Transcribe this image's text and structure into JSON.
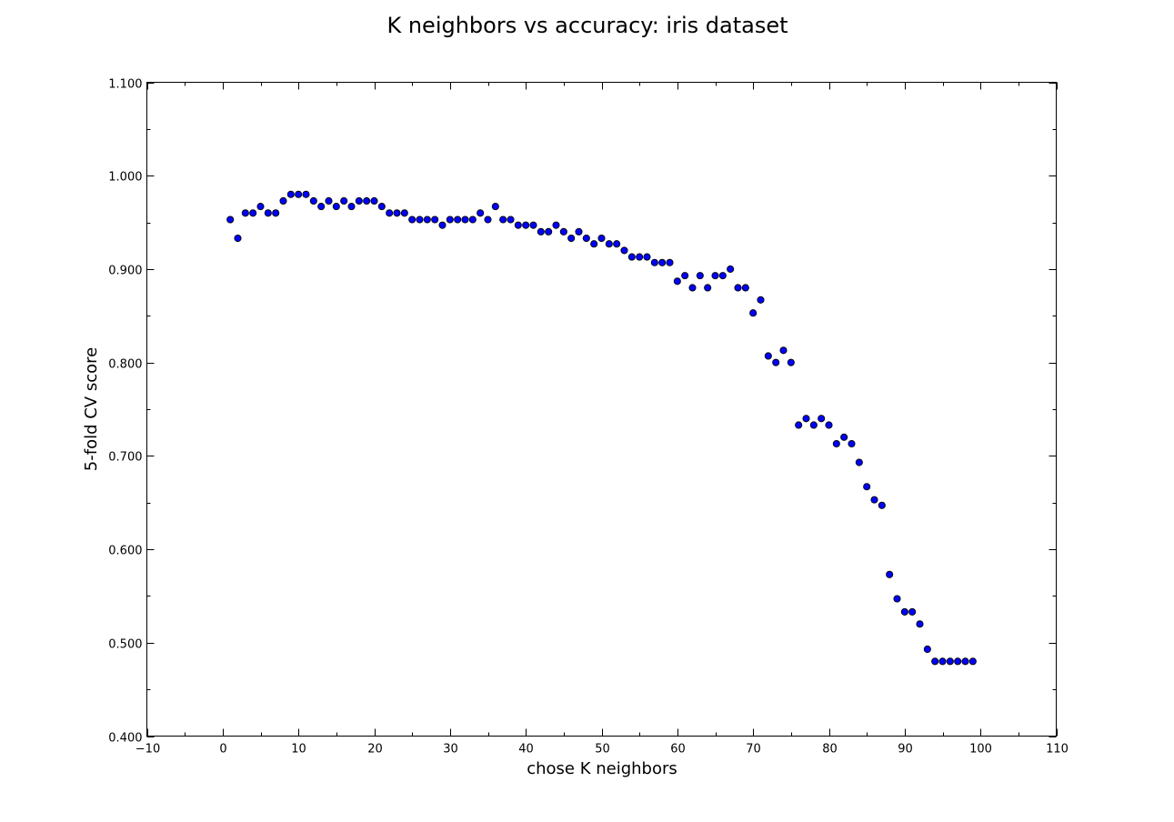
{
  "chart_data": {
    "type": "scatter",
    "title": "K neighbors vs accuracy: iris dataset",
    "xlabel": "chose K neighbors",
    "ylabel": "5-fold CV score",
    "xlim": [
      -10,
      110
    ],
    "ylim": [
      0.4,
      1.1
    ],
    "x_ticks": [
      -10,
      0,
      10,
      20,
      30,
      40,
      50,
      60,
      70,
      80,
      90,
      100,
      110
    ],
    "x_tick_labels": [
      "−10",
      "0",
      "10",
      "20",
      "30",
      "40",
      "50",
      "60",
      "70",
      "80",
      "90",
      "100",
      "110"
    ],
    "y_ticks": [
      0.4,
      0.5,
      0.6,
      0.7,
      0.8,
      0.9,
      1.0,
      1.1
    ],
    "y_tick_labels": [
      "0.400",
      "0.500",
      "0.600",
      "0.700",
      "0.800",
      "0.900",
      "1.000",
      "1.100"
    ],
    "grid": false,
    "marker_color": "#0000ff",
    "marker_edge_color": "#000000",
    "x": [
      1,
      2,
      3,
      4,
      5,
      6,
      7,
      8,
      9,
      10,
      11,
      12,
      13,
      14,
      15,
      16,
      17,
      18,
      19,
      20,
      21,
      22,
      23,
      24,
      25,
      26,
      27,
      28,
      29,
      30,
      31,
      32,
      33,
      34,
      35,
      36,
      37,
      38,
      39,
      40,
      41,
      42,
      43,
      44,
      45,
      46,
      47,
      48,
      49,
      50,
      51,
      52,
      53,
      54,
      55,
      56,
      57,
      58,
      59,
      60,
      61,
      62,
      63,
      64,
      65,
      66,
      67,
      68,
      69,
      70,
      71,
      72,
      73,
      74,
      75,
      76,
      77,
      78,
      79,
      80,
      81,
      82,
      83,
      84,
      85,
      86,
      87,
      88,
      89,
      90,
      91,
      92,
      93,
      94,
      95,
      96,
      97,
      98,
      99
    ],
    "y": [
      0.953,
      0.933,
      0.96,
      0.96,
      0.967,
      0.96,
      0.96,
      0.973,
      0.98,
      0.98,
      0.98,
      0.973,
      0.967,
      0.973,
      0.967,
      0.973,
      0.967,
      0.973,
      0.973,
      0.973,
      0.967,
      0.96,
      0.96,
      0.96,
      0.953,
      0.953,
      0.953,
      0.953,
      0.947,
      0.953,
      0.953,
      0.953,
      0.953,
      0.96,
      0.953,
      0.967,
      0.953,
      0.953,
      0.947,
      0.947,
      0.947,
      0.94,
      0.94,
      0.947,
      0.94,
      0.933,
      0.94,
      0.933,
      0.927,
      0.933,
      0.927,
      0.927,
      0.92,
      0.913,
      0.913,
      0.913,
      0.907,
      0.907,
      0.907,
      0.887,
      0.893,
      0.88,
      0.893,
      0.88,
      0.893,
      0.893,
      0.9,
      0.88,
      0.88,
      0.853,
      0.867,
      0.807,
      0.8,
      0.813,
      0.8,
      0.733,
      0.74,
      0.733,
      0.74,
      0.733,
      0.713,
      0.72,
      0.713,
      0.693,
      0.667,
      0.653,
      0.647,
      0.573,
      0.547,
      0.533,
      0.533,
      0.52,
      0.493,
      0.48,
      0.48,
      0.48,
      0.48,
      0.48,
      0.48
    ]
  }
}
